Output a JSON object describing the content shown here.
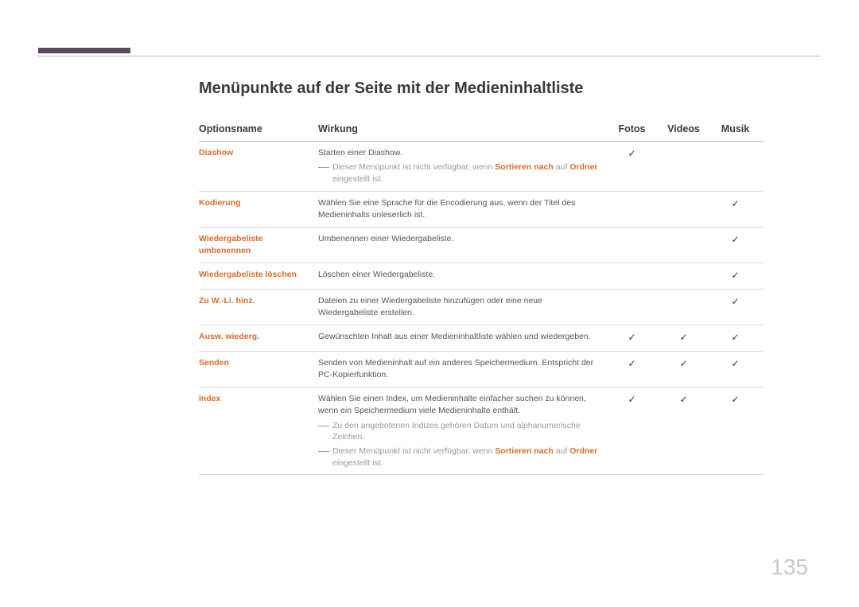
{
  "colors": {
    "accent_bar": "#5b475e",
    "option_text": "#d86b2e",
    "body_text": "#555555",
    "muted_text": "#999999",
    "heading_text": "#3a3a3a",
    "border_light": "#d8d8d8",
    "border_dark": "#b8b8b8",
    "page_num": "#c8c8c8",
    "check": "#333333"
  },
  "page_number": "135",
  "title": "Menüpunkte auf der Seite mit der Medieninhaltliste",
  "check_glyph": "✓",
  "headers": {
    "option": "Optionsname",
    "effect": "Wirkung",
    "photos": "Fotos",
    "videos": "Videos",
    "music": "Musik"
  },
  "rows": [
    {
      "opt": "Diashow",
      "desc": "Starten einer Diashow.",
      "notes": [
        {
          "pre": "Dieser Menüpunkt ist nicht verfügbar, wenn ",
          "b1": "Sortieren nach",
          "mid": " auf ",
          "b2": "Ordner",
          "post": " eingestellt ist."
        }
      ],
      "photos": true,
      "videos": false,
      "music": false
    },
    {
      "opt": "Kodierung",
      "desc": "Wählen Sie eine Sprache für die Encodierung aus, wenn der Titel des Medieninhalts unleserlich ist.",
      "notes": [],
      "photos": false,
      "videos": false,
      "music": true
    },
    {
      "opt": "Wiedergabeliste umbenennen",
      "desc": "Umbenennen einer Wiedergabeliste.",
      "notes": [],
      "photos": false,
      "videos": false,
      "music": true
    },
    {
      "opt": "Wiedergabeliste löschen",
      "desc": "Löschen einer Wiedergabeliste.",
      "notes": [],
      "photos": false,
      "videos": false,
      "music": true
    },
    {
      "opt": "Zu W.-Li. hinz.",
      "desc": "Dateien zu einer Wiedergabeliste hinzufügen oder eine neue Wiedergabeliste erstellen.",
      "notes": [],
      "photos": false,
      "videos": false,
      "music": true
    },
    {
      "opt": "Ausw. wiederg.",
      "desc": "Gewünschten Inhalt aus einer Medieninhaltliste wählen und wiedergeben.",
      "notes": [],
      "photos": true,
      "videos": true,
      "music": true
    },
    {
      "opt": "Senden",
      "desc": "Senden von Medieninhalt auf ein anderes Speichermedium. Entspricht der PC-Kopierfunktion.",
      "notes": [],
      "photos": true,
      "videos": true,
      "music": true
    },
    {
      "opt": "Index",
      "desc": "Wählen Sie einen Index, um Medieninhalte einfacher suchen zu können, wenn ein Speichermedium viele Medieninhalte enthält.",
      "notes": [
        {
          "pre": "Zu den angebotenen Indizes gehören Datum und alphanumerische Zeichen."
        },
        {
          "pre": "Dieser Menüpunkt ist nicht verfügbar, wenn ",
          "b1": "Sortieren nach",
          "mid": " auf ",
          "b2": "Ordner",
          "post": " eingestellt ist."
        }
      ],
      "photos": true,
      "videos": true,
      "music": true
    }
  ]
}
